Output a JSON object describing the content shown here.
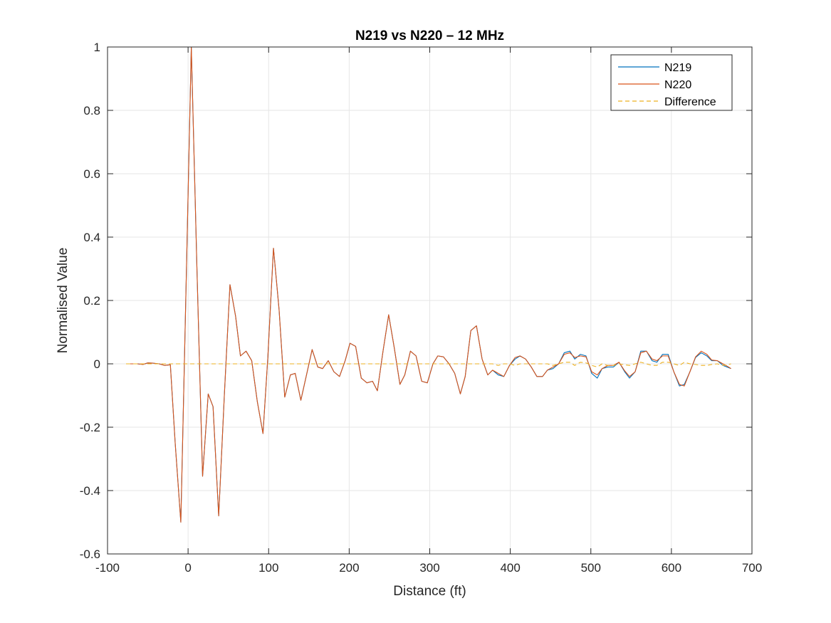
{
  "chart_data": {
    "type": "line",
    "title": "N219 vs N220 – 12 MHz",
    "xlabel": "Distance (ft)",
    "ylabel": "Normalised Value",
    "xlim": [
      -100,
      700
    ],
    "ylim": [
      -0.6,
      1
    ],
    "xticks": [
      -100,
      0,
      100,
      200,
      300,
      400,
      500,
      600,
      700
    ],
    "xtick_labels": [
      "-100",
      "0",
      "100",
      "200",
      "300",
      "400",
      "500",
      "600",
      "700"
    ],
    "yticks": [
      -0.6,
      -0.4,
      -0.2,
      0,
      0.2,
      0.4,
      0.6,
      0.8,
      1
    ],
    "ytick_labels": [
      "-0.6",
      "-0.4",
      "-0.2",
      "0",
      "0.2",
      "0.4",
      "0.6",
      "0.8",
      "1"
    ],
    "grid": true,
    "legend_position": "top-right",
    "x": [
      -77,
      -70,
      -63,
      -56,
      -50,
      -43,
      -36,
      -29,
      -22,
      -16,
      -9,
      -2,
      4,
      11,
      18,
      25,
      31,
      38,
      45,
      52,
      59,
      65,
      72,
      79,
      86,
      93,
      99,
      106,
      113,
      120,
      127,
      133,
      140,
      147,
      154,
      161,
      167,
      174,
      181,
      188,
      195,
      201,
      208,
      215,
      222,
      229,
      235,
      242,
      249,
      256,
      263,
      269,
      276,
      283,
      290,
      297,
      304,
      310,
      317,
      324,
      331,
      338,
      344,
      351,
      358,
      365,
      372,
      378,
      385,
      392,
      399,
      406,
      412,
      419,
      426,
      433,
      440,
      446,
      453,
      460,
      467,
      474,
      480,
      487,
      494,
      501,
      508,
      514,
      521,
      528,
      535,
      542,
      548,
      555,
      562,
      569,
      576,
      582,
      589,
      596,
      603,
      610,
      616,
      623,
      630,
      637,
      644,
      650,
      657,
      664,
      671,
      674
    ],
    "series": [
      {
        "name": "N219",
        "color": "#0072BD",
        "style": "solid",
        "values": [
          0,
          0,
          0,
          -0.002,
          0.003,
          0.002,
          0,
          -0.005,
          -0.003,
          -0.25,
          -0.5,
          0.3,
          1.0,
          0.3,
          -0.355,
          -0.095,
          -0.135,
          -0.48,
          -0.1,
          0.25,
          0.15,
          0.025,
          0.04,
          0.01,
          -0.12,
          -0.22,
          0.02,
          0.365,
          0.17,
          -0.105,
          -0.035,
          -0.03,
          -0.115,
          -0.035,
          0.045,
          -0.01,
          -0.015,
          0.01,
          -0.025,
          -0.04,
          0.01,
          0.065,
          0.055,
          -0.045,
          -0.06,
          -0.055,
          -0.085,
          0.04,
          0.155,
          0.05,
          -0.065,
          -0.035,
          0.04,
          0.025,
          -0.055,
          -0.06,
          0,
          0.025,
          0.022,
          0,
          -0.03,
          -0.095,
          -0.04,
          0.105,
          0.12,
          0.015,
          -0.035,
          -0.02,
          -0.035,
          -0.04,
          -0.005,
          0.015,
          0.025,
          0.015,
          -0.01,
          -0.04,
          -0.04,
          -0.02,
          -0.015,
          0,
          0.035,
          0.04,
          0.015,
          0.03,
          0.025,
          -0.03,
          -0.045,
          -0.015,
          -0.01,
          -0.01,
          0.005,
          -0.025,
          -0.045,
          -0.025,
          0.04,
          0.04,
          0.01,
          0.005,
          0.03,
          0.03,
          -0.025,
          -0.07,
          -0.065,
          -0.025,
          0.02,
          0.035,
          0.025,
          0.01,
          0.01,
          -0.005,
          -0.012,
          -0.015
        ]
      },
      {
        "name": "N220",
        "color": "#D95319",
        "style": "solid",
        "values": [
          0,
          0,
          0,
          -0.002,
          0.003,
          0.002,
          0,
          -0.005,
          -0.003,
          -0.25,
          -0.5,
          0.3,
          1.0,
          0.3,
          -0.355,
          -0.095,
          -0.135,
          -0.48,
          -0.1,
          0.25,
          0.15,
          0.025,
          0.04,
          0.01,
          -0.12,
          -0.22,
          0.02,
          0.365,
          0.17,
          -0.105,
          -0.035,
          -0.03,
          -0.115,
          -0.035,
          0.045,
          -0.01,
          -0.015,
          0.01,
          -0.025,
          -0.04,
          0.01,
          0.065,
          0.055,
          -0.045,
          -0.06,
          -0.055,
          -0.085,
          0.04,
          0.155,
          0.05,
          -0.065,
          -0.035,
          0.04,
          0.025,
          -0.055,
          -0.06,
          0,
          0.025,
          0.022,
          0,
          -0.03,
          -0.095,
          -0.04,
          0.105,
          0.12,
          0.015,
          -0.035,
          -0.02,
          -0.03,
          -0.04,
          -0.005,
          0.02,
          0.025,
          0.015,
          -0.01,
          -0.04,
          -0.04,
          -0.02,
          -0.01,
          0,
          0.03,
          0.035,
          0.02,
          0.025,
          0.022,
          -0.025,
          -0.035,
          -0.015,
          -0.005,
          -0.005,
          0.005,
          -0.022,
          -0.04,
          -0.025,
          0.035,
          0.04,
          0.015,
          0.01,
          0.025,
          0.025,
          -0.025,
          -0.065,
          -0.07,
          -0.025,
          0.022,
          0.04,
          0.03,
          0.012,
          0.01,
          0,
          -0.01,
          -0.015
        ]
      },
      {
        "name": "Difference",
        "color": "#EDB120",
        "style": "dashed",
        "values": [
          0,
          0,
          0,
          0,
          0,
          0,
          0,
          0,
          0,
          0,
          0,
          0,
          0,
          0,
          0,
          0,
          0,
          0,
          0,
          0,
          0,
          0,
          0,
          0,
          0,
          0,
          0,
          0,
          0,
          0,
          0,
          0,
          0,
          0,
          0,
          0,
          0,
          0,
          0,
          0,
          0,
          0,
          0,
          0,
          0,
          0,
          0,
          0,
          0,
          0,
          0,
          0,
          0,
          0,
          0,
          0,
          0,
          0,
          0,
          0,
          0,
          0,
          0,
          0,
          0,
          0,
          0,
          0,
          -0.005,
          0,
          0,
          -0.005,
          0,
          0,
          0,
          0,
          0,
          0,
          -0.005,
          0,
          0.005,
          0.005,
          -0.005,
          0.005,
          0.003,
          -0.005,
          -0.01,
          0,
          -0.005,
          -0.005,
          0,
          -0.003,
          -0.005,
          0,
          0.005,
          0,
          -0.005,
          -0.005,
          0.005,
          0.005,
          0,
          -0.005,
          0.005,
          0,
          -0.002,
          -0.005,
          -0.005,
          -0.002,
          0,
          -0.005,
          -0.002,
          0
        ]
      }
    ]
  }
}
